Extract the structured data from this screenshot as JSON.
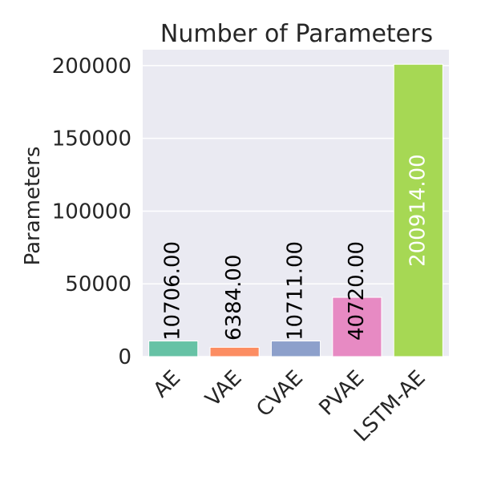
{
  "chart_data": {
    "type": "bar",
    "title": "Number of Parameters",
    "xlabel": "",
    "ylabel": "Parameters",
    "categories": [
      "AE",
      "VAE",
      "CVAE",
      "PVAE",
      "LSTM-AE"
    ],
    "values": [
      10706,
      6384,
      10711,
      40720,
      200914
    ],
    "data_labels": [
      "10706.00",
      "6384.00",
      "10711.00",
      "40720.00",
      "200914.00"
    ],
    "colors": [
      "#66c2a5",
      "#fc8d62",
      "#8da0cb",
      "#e78ac3",
      "#a6d854"
    ],
    "yticks": [
      0,
      50000,
      100000,
      150000,
      200000
    ],
    "ytick_labels": [
      "0",
      "50000",
      "100000",
      "150000",
      "200000"
    ],
    "ylim": [
      0,
      210960
    ],
    "grid": true,
    "plot_background": "#eaeaf2",
    "grid_color": "#ffffff"
  }
}
